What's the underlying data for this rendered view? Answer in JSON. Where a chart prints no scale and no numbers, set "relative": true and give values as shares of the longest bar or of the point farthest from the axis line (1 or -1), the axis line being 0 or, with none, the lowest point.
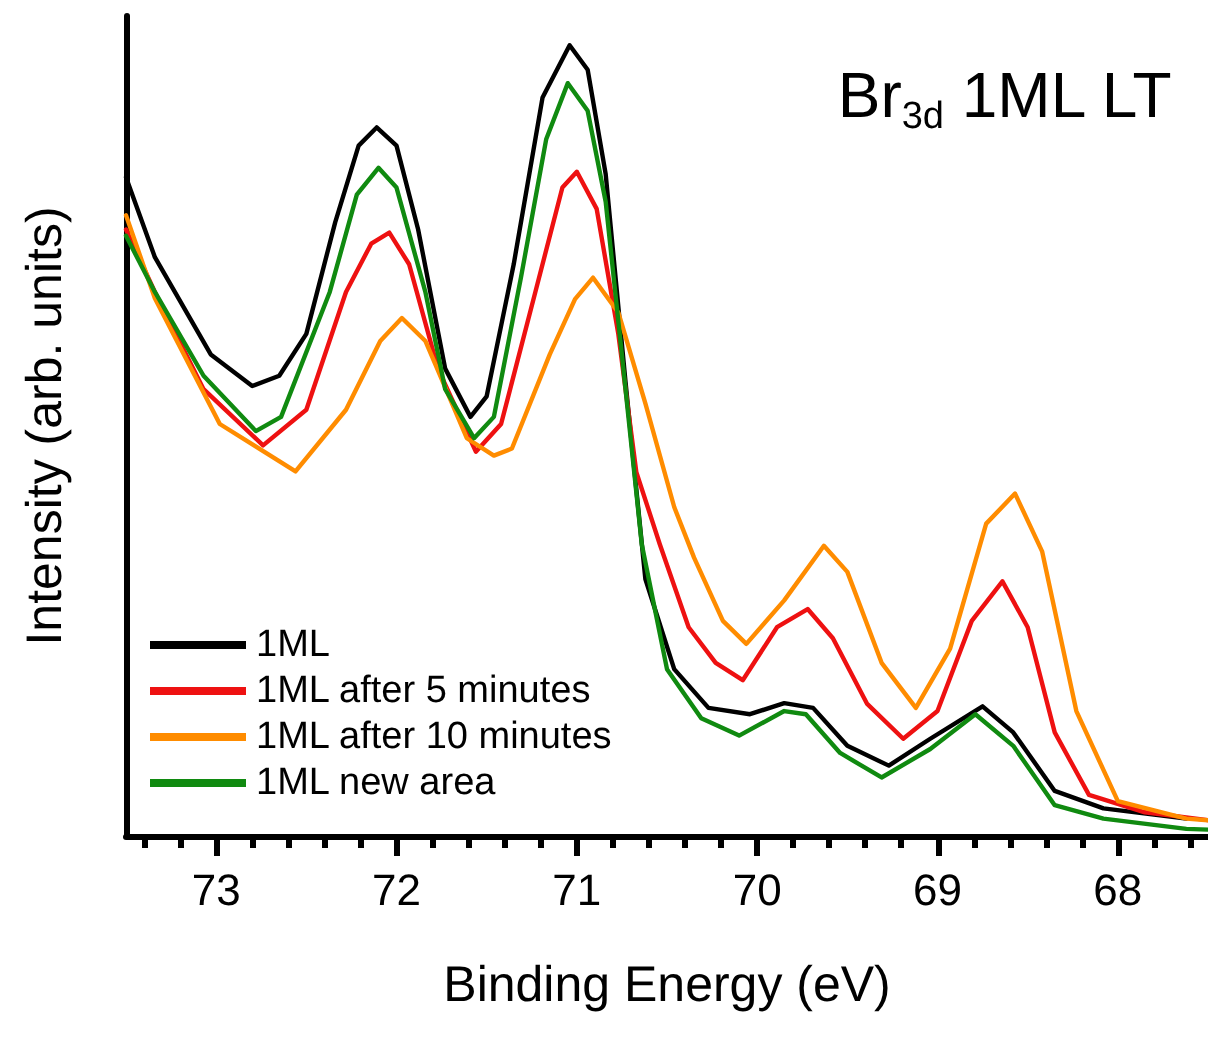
{
  "chart_data": {
    "type": "line",
    "title": "Br$_{3d}$ 1ML LT",
    "xlabel": "Binding Energy (eV)",
    "ylabel": "Intensity (arb. units)",
    "relative": true,
    "xlim": [
      73.5,
      67.5
    ],
    "xticks": [
      {
        "value": 73.4,
        "label": null
      },
      {
        "value": 73.2,
        "label": null
      },
      73,
      {
        "value": 72.8,
        "label": null
      },
      {
        "value": 72.6,
        "label": null
      },
      {
        "value": 72.4,
        "label": null
      },
      {
        "value": 72.2,
        "label": null
      },
      72,
      {
        "value": 71.8,
        "label": null
      },
      {
        "value": 71.6,
        "label": null
      },
      {
        "value": 71.4,
        "label": null
      },
      {
        "value": 71.2,
        "label": null
      },
      71,
      {
        "value": 70.8,
        "label": null
      },
      {
        "value": 70.6,
        "label": null
      },
      {
        "value": 70.4,
        "label": null
      },
      {
        "value": 70.2,
        "label": null
      },
      70,
      {
        "value": 69.8,
        "label": null
      },
      {
        "value": 69.6,
        "label": null
      },
      {
        "value": 69.4,
        "label": null
      },
      {
        "value": 69.2,
        "label": null
      },
      69,
      {
        "value": 68.8,
        "label": null
      },
      {
        "value": 68.6,
        "label": null
      },
      {
        "value": 68.4,
        "label": null
      },
      {
        "value": 68.2,
        "label": null
      },
      68,
      {
        "value": 67.8,
        "label": null
      },
      {
        "value": 67.6,
        "label": null
      }
    ],
    "grid": false,
    "legend": "bottom left",
    "marker": "none",
    "line_style": "solid",
    "series": [
      {
        "name": "1ML",
        "color": "#000000",
        "x": [
          73.5,
          73.34,
          73.03,
          72.8,
          72.65,
          72.5,
          72.34,
          72.21,
          72.11,
          72.0,
          71.88,
          71.73,
          71.59,
          71.5,
          71.35,
          71.19,
          71.04,
          70.94,
          70.84,
          70.73,
          70.62,
          70.46,
          70.27,
          70.04,
          69.85,
          69.69,
          69.5,
          69.27,
          69.04,
          68.75,
          68.58,
          68.35,
          68.08,
          67.62
        ],
        "values": [
          0.833,
          0.732,
          0.609,
          0.569,
          0.582,
          0.635,
          0.776,
          0.873,
          0.896,
          0.873,
          0.767,
          0.591,
          0.53,
          0.556,
          0.723,
          0.934,
          1.0,
          0.969,
          0.837,
          0.574,
          0.325,
          0.211,
          0.162,
          0.154,
          0.168,
          0.162,
          0.114,
          0.089,
          0.123,
          0.164,
          0.131,
          0.057,
          0.035,
          0.022
        ]
      },
      {
        "name": "1ML after 5 minutes",
        "color": "#ee1111",
        "x": [
          73.5,
          73.34,
          73.07,
          72.74,
          72.5,
          72.28,
          72.14,
          72.04,
          71.93,
          71.77,
          71.56,
          71.42,
          71.23,
          71.08,
          71.0,
          70.89,
          70.77,
          70.67,
          70.54,
          70.38,
          70.23,
          70.08,
          69.89,
          69.72,
          69.58,
          69.39,
          69.19,
          69.0,
          68.81,
          68.64,
          68.5,
          68.35,
          68.16,
          67.85,
          67.5
        ],
        "values": [
          0.767,
          0.688,
          0.565,
          0.494,
          0.539,
          0.688,
          0.749,
          0.763,
          0.723,
          0.591,
          0.486,
          0.521,
          0.688,
          0.82,
          0.84,
          0.793,
          0.635,
          0.46,
          0.369,
          0.264,
          0.219,
          0.197,
          0.264,
          0.287,
          0.25,
          0.167,
          0.123,
          0.158,
          0.272,
          0.322,
          0.264,
          0.131,
          0.052,
          0.03,
          0.02
        ]
      },
      {
        "name": "1ML after 10 minutes",
        "color": "#ff8c00",
        "x": [
          73.5,
          73.34,
          72.98,
          72.56,
          72.28,
          72.09,
          71.97,
          71.84,
          71.61,
          71.46,
          71.36,
          71.15,
          71.01,
          70.91,
          70.77,
          70.62,
          70.46,
          70.35,
          70.19,
          70.06,
          69.85,
          69.63,
          69.5,
          69.31,
          69.12,
          68.93,
          68.73,
          68.57,
          68.42,
          68.23,
          68.0,
          67.62,
          67.5
        ],
        "values": [
          0.785,
          0.68,
          0.521,
          0.461,
          0.539,
          0.626,
          0.655,
          0.626,
          0.503,
          0.481,
          0.49,
          0.609,
          0.679,
          0.706,
          0.662,
          0.547,
          0.416,
          0.352,
          0.272,
          0.243,
          0.298,
          0.367,
          0.334,
          0.219,
          0.162,
          0.237,
          0.395,
          0.433,
          0.36,
          0.158,
          0.044,
          0.022,
          0.02
        ]
      },
      {
        "name": "1ML new area",
        "color": "#108a10",
        "x": [
          73.5,
          73.34,
          73.07,
          72.78,
          72.64,
          72.37,
          72.22,
          72.1,
          72.0,
          71.84,
          71.73,
          71.57,
          71.46,
          71.31,
          71.17,
          71.05,
          70.94,
          70.84,
          70.73,
          70.64,
          70.5,
          70.31,
          70.1,
          69.85,
          69.73,
          69.54,
          69.31,
          69.04,
          68.79,
          68.58,
          68.35,
          68.08,
          67.62,
          67.5
        ],
        "values": [
          0.759,
          0.688,
          0.582,
          0.512,
          0.53,
          0.688,
          0.811,
          0.845,
          0.82,
          0.688,
          0.565,
          0.503,
          0.53,
          0.706,
          0.881,
          0.952,
          0.917,
          0.802,
          0.565,
          0.369,
          0.211,
          0.149,
          0.127,
          0.158,
          0.154,
          0.105,
          0.074,
          0.11,
          0.154,
          0.114,
          0.039,
          0.022,
          0.009,
          0.008
        ]
      }
    ]
  }
}
